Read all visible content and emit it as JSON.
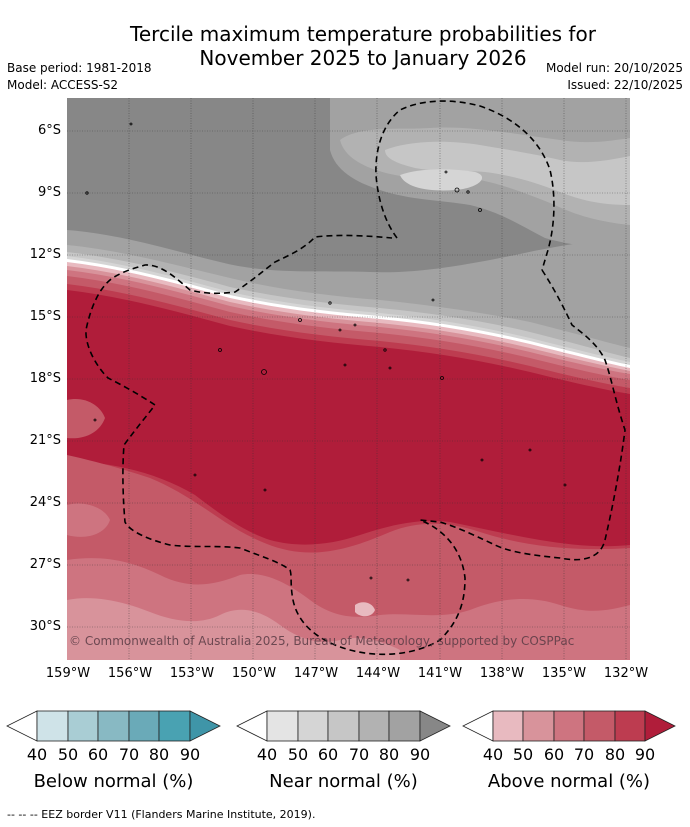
{
  "title": {
    "line1": "Tercile maximum temperature probabilities for",
    "line2": "November 2025 to January 2026"
  },
  "meta": {
    "base_period": "Base period: 1981-2018",
    "model": "Model: ACCESS-S2",
    "model_run": "Model run: 20/10/2025",
    "issued": "Issued: 22/10/2025"
  },
  "map": {
    "lat_labels": [
      "6°S",
      "9°S",
      "12°S",
      "15°S",
      "18°S",
      "21°S",
      "24°S",
      "27°S",
      "30°S"
    ],
    "lon_labels": [
      "159°W",
      "156°W",
      "153°W",
      "150°W",
      "147°W",
      "144°W",
      "141°W",
      "138°W",
      "135°W",
      "132°W"
    ],
    "copyright": "© Commonwealth of Australia 2025, Bureau of Meteorology, supported by COSPPac"
  },
  "colors": {
    "below": [
      "#cfe3e8",
      "#a9cdd4",
      "#88b9c3",
      "#6aaab8",
      "#49a2b2"
    ],
    "near": [
      "#e4e4e4",
      "#d5d5d5",
      "#c6c6c6",
      "#b2b2b2",
      "#a2a2a2",
      "#878787"
    ],
    "above": [
      "#e8bac0",
      "#d8939b",
      "#ce7480",
      "#c45a68",
      "#bd3c50",
      "#b01d3a"
    ]
  },
  "legend": {
    "below": {
      "title": "Below normal (%)",
      "ticks": [
        "40",
        "50",
        "60",
        "70",
        "80",
        "90"
      ]
    },
    "near": {
      "title": "Near normal (%)",
      "ticks": [
        "40",
        "50",
        "60",
        "70",
        "80",
        "90"
      ]
    },
    "above": {
      "title": "Above normal (%)",
      "ticks": [
        "40",
        "50",
        "60",
        "70",
        "80",
        "90"
      ]
    }
  },
  "footer": "--  --  -- EEZ border V11 (Flanders Marine Institute, 2019)."
}
